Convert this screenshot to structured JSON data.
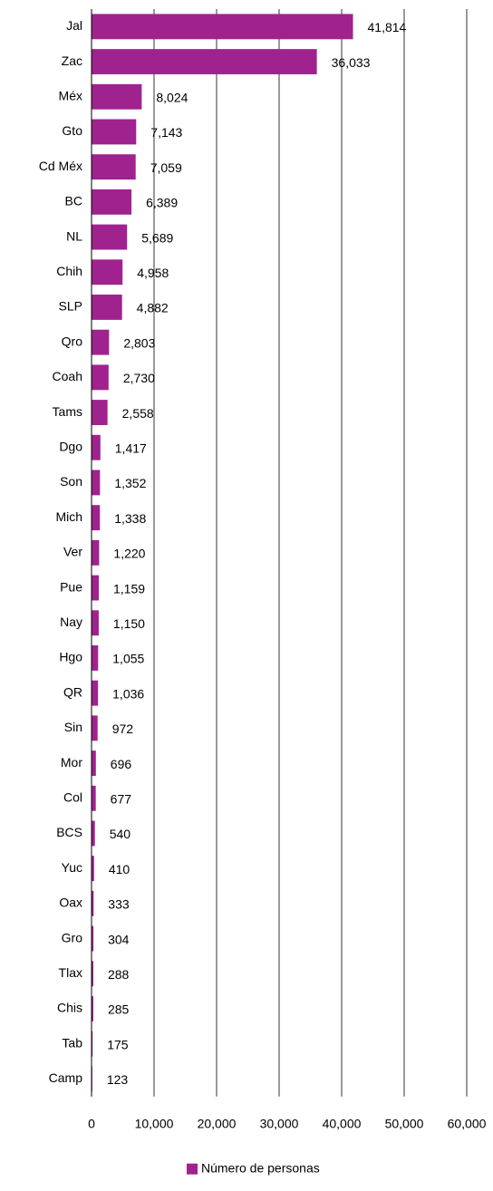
{
  "chart_data": {
    "type": "bar",
    "orientation": "horizontal",
    "categories": [
      "Jal",
      "Zac",
      "Méx",
      "Gto",
      "Cd Méx",
      "BC",
      "NL",
      "Chih",
      "SLP",
      "Qro",
      "Coah",
      "Tams",
      "Dgo",
      "Son",
      "Mich",
      "Ver",
      "Pue",
      "Nay",
      "Hgo",
      "QR",
      "Sin",
      "Mor",
      "Col",
      "BCS",
      "Yuc",
      "Oax",
      "Gro",
      "Tlax",
      "Chis",
      "Tab",
      "Camp"
    ],
    "series": [
      {
        "name": "Número de personas",
        "color": "#a0228f",
        "values": [
          41814,
          36033,
          8024,
          7143,
          7059,
          6389,
          5689,
          4958,
          4882,
          2803,
          2730,
          2558,
          1417,
          1352,
          1338,
          1220,
          1159,
          1150,
          1055,
          1036,
          972,
          696,
          677,
          540,
          410,
          333,
          304,
          288,
          285,
          175,
          123
        ],
        "value_labels": [
          "41,814",
          "36,033",
          "8,024",
          "7,143",
          "7,059",
          "6,389",
          "5,689",
          "4,958",
          "4,882",
          "2,803",
          "2,730",
          "2,558",
          "1,417",
          "1,352",
          "1,338",
          "1,220",
          "1,159",
          "1,150",
          "1,055",
          "1,036",
          "972",
          "696",
          "677",
          "540",
          "410",
          "333",
          "304",
          "288",
          "285",
          "175",
          "123"
        ]
      }
    ],
    "xlim": [
      0,
      60000
    ],
    "xticks": [
      0,
      {
        "value": 10000,
        "label": "10,000"
      },
      {
        "value": 20000,
        "label": "20,000"
      },
      {
        "value": 30000,
        "label": "30,000"
      },
      {
        "value": 40000,
        "label": "40,000"
      },
      {
        "value": 50000,
        "label": "50,000"
      },
      {
        "value": 60000,
        "label": "60,000"
      }
    ],
    "grid": true,
    "legend": "bottom"
  }
}
